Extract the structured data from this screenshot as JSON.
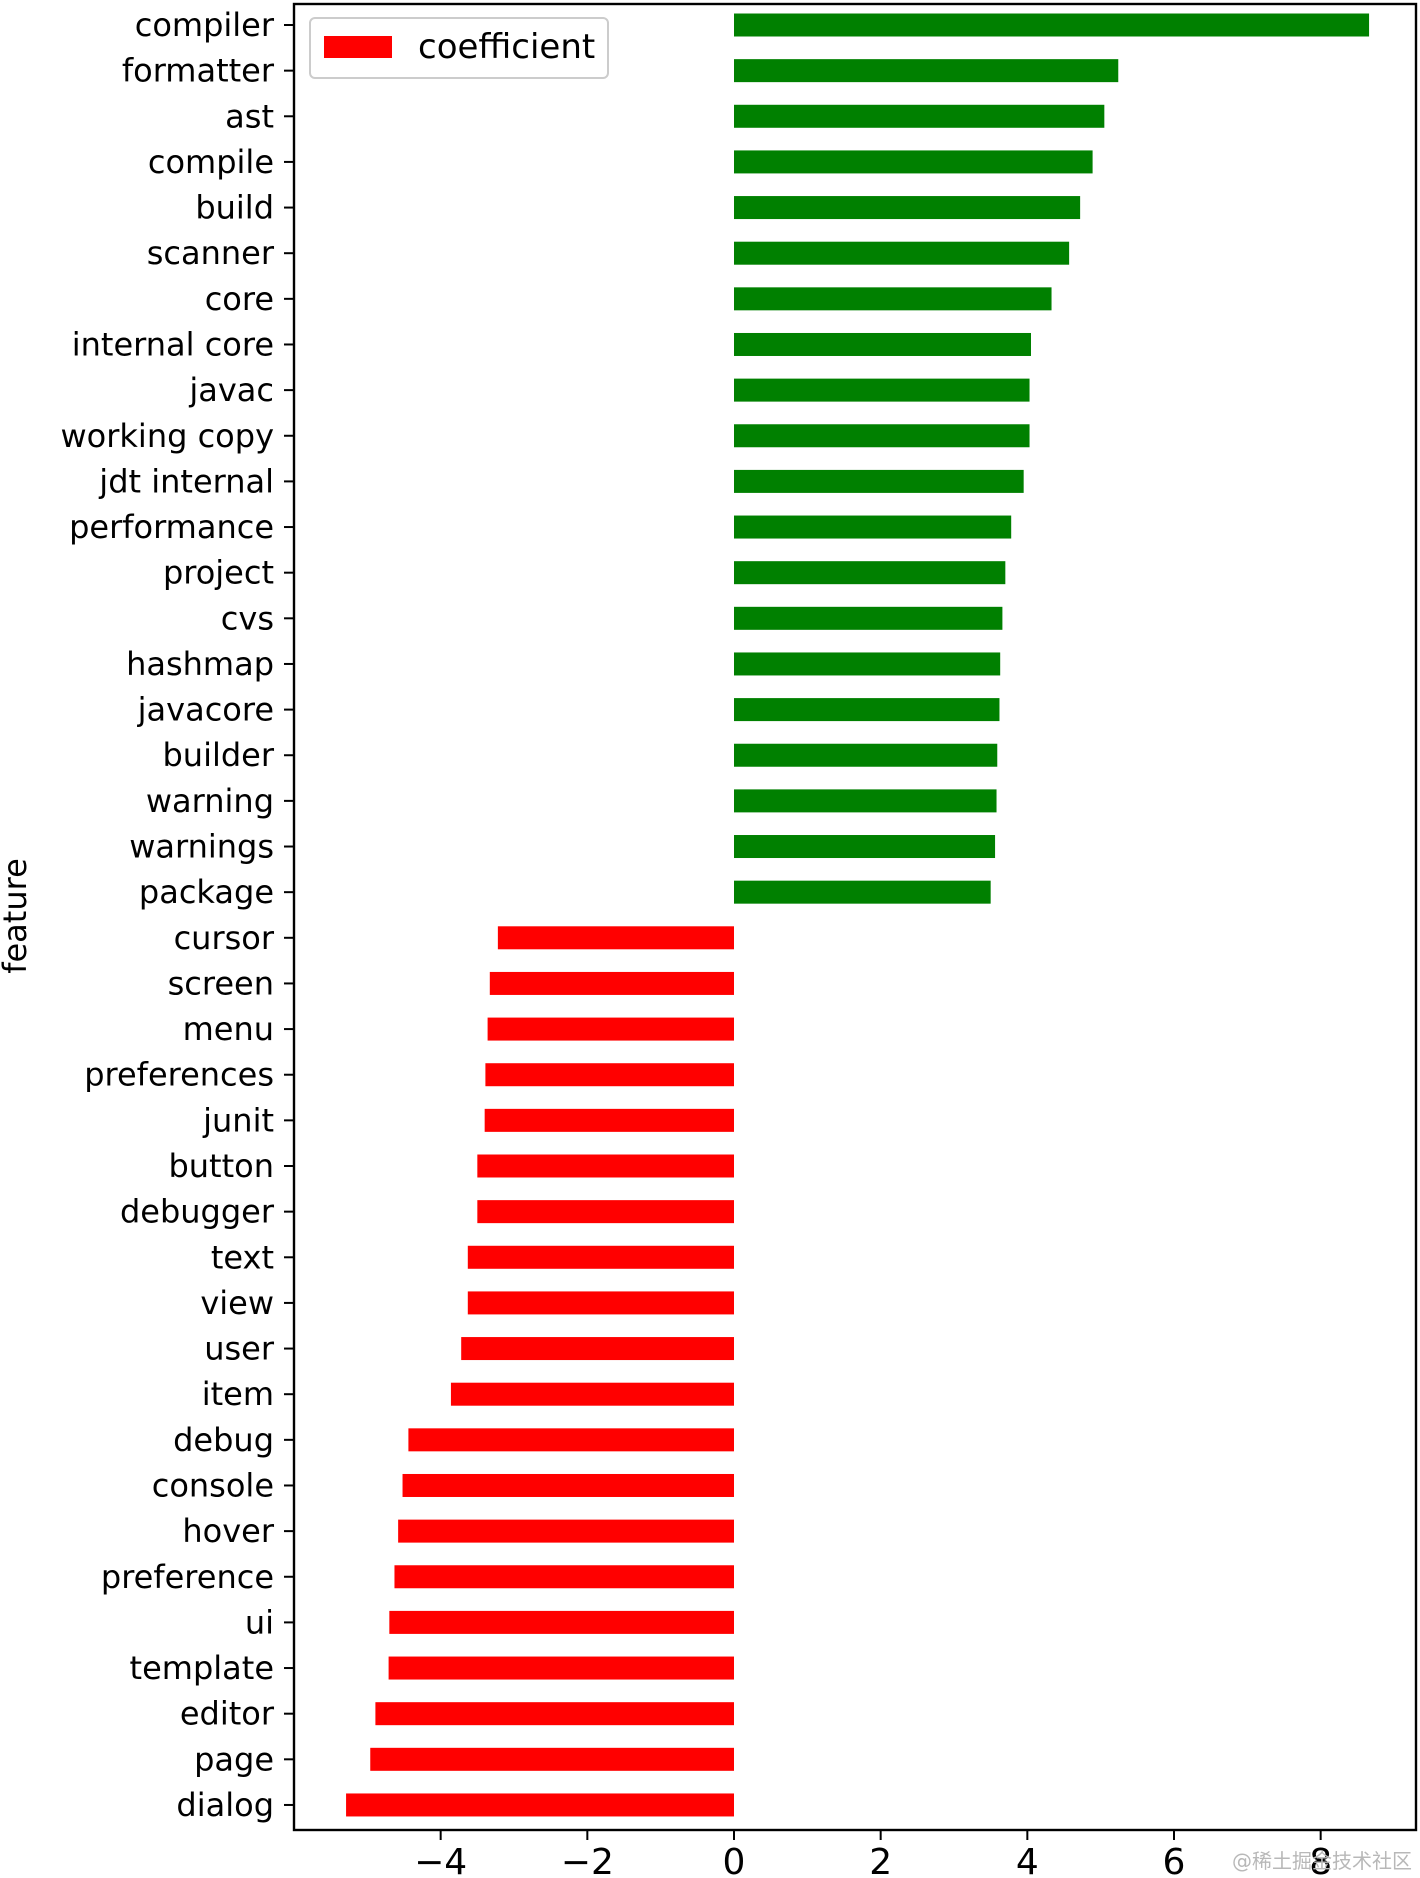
{
  "chart_data": {
    "type": "bar",
    "orientation": "horizontal",
    "ylabel": "feature",
    "xlabel": "",
    "xlim": [
      -6.0,
      9.3
    ],
    "xticks": [
      -4,
      -2,
      0,
      2,
      4,
      6,
      8
    ],
    "xtick_labels": [
      "−4",
      "−2",
      "0",
      "2",
      "4",
      "6",
      "8"
    ],
    "legend": {
      "label": "coefficient",
      "position": "top-left",
      "swatch_color": "#ff0000"
    },
    "positive_color": "#008000",
    "negative_color": "#ff0000",
    "grid": false,
    "categories": [
      "compiler",
      "formatter",
      "ast",
      "compile",
      "build",
      "scanner",
      "core",
      "internal core",
      "javac",
      "working copy",
      "jdt internal",
      "performance",
      "project",
      "cvs",
      "hashmap",
      "javacore",
      "builder",
      "warning",
      "warnings",
      "package",
      "cursor",
      "screen",
      "menu",
      "preferences",
      "junit",
      "button",
      "debugger",
      "text",
      "view",
      "user",
      "item",
      "debug",
      "console",
      "hover",
      "preference",
      "ui",
      "template",
      "editor",
      "page",
      "dialog"
    ],
    "values": [
      8.66,
      5.24,
      5.05,
      4.89,
      4.72,
      4.57,
      4.33,
      4.05,
      4.03,
      4.03,
      3.95,
      3.78,
      3.7,
      3.66,
      3.63,
      3.62,
      3.59,
      3.58,
      3.56,
      3.5,
      -3.22,
      -3.33,
      -3.36,
      -3.39,
      -3.4,
      -3.5,
      -3.5,
      -3.63,
      -3.63,
      -3.72,
      -3.86,
      -4.44,
      -4.52,
      -4.58,
      -4.63,
      -4.7,
      -4.71,
      -4.89,
      -4.96,
      -5.29
    ]
  },
  "watermark": "@稀土掘金技术社区"
}
